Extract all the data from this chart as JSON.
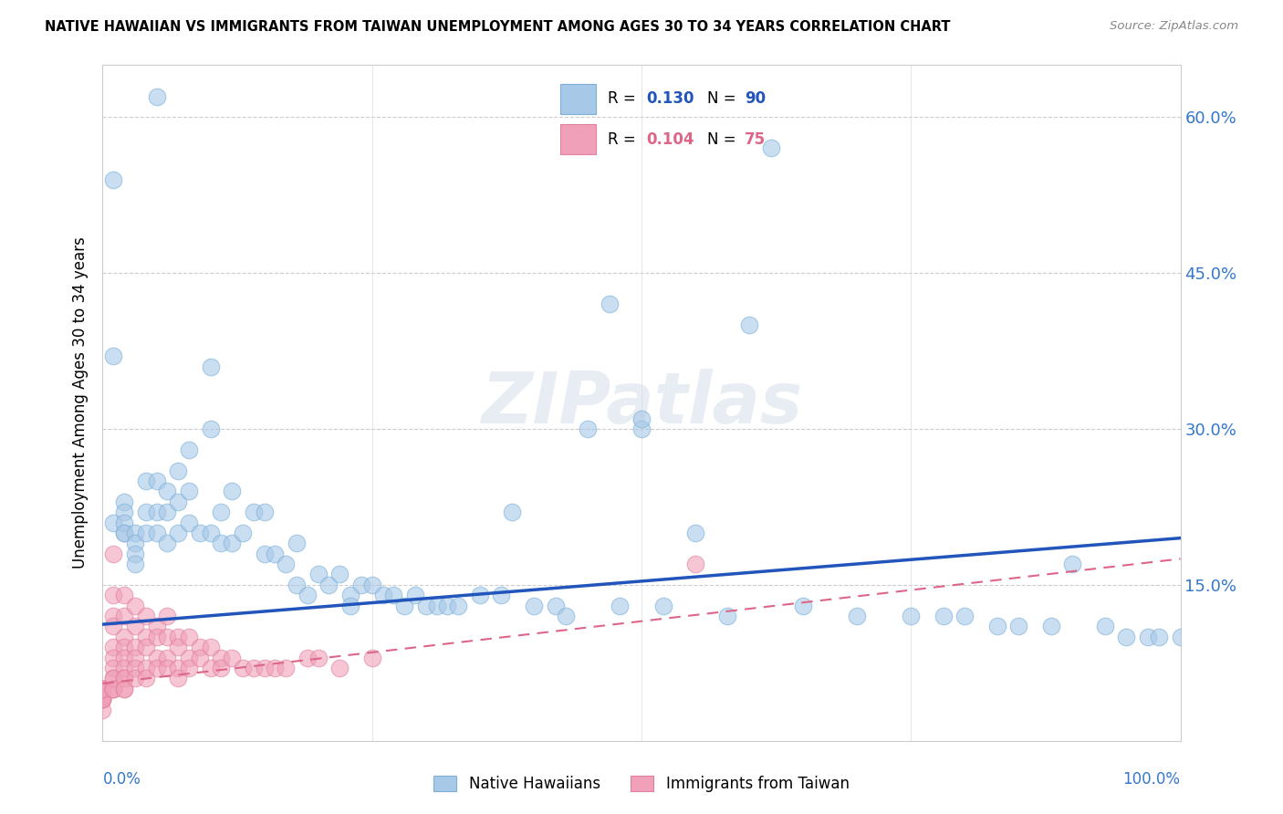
{
  "title": "NATIVE HAWAIIAN VS IMMIGRANTS FROM TAIWAN UNEMPLOYMENT AMONG AGES 30 TO 34 YEARS CORRELATION CHART",
  "source": "Source: ZipAtlas.com",
  "ylabel": "Unemployment Among Ages 30 to 34 years",
  "xlim": [
    0,
    1.0
  ],
  "ylim": [
    0,
    0.65
  ],
  "y_tick_labels": [
    "15.0%",
    "30.0%",
    "45.0%",
    "60.0%"
  ],
  "y_tick_values": [
    0.15,
    0.3,
    0.45,
    0.6
  ],
  "blue_color": "#a8c8e8",
  "pink_color": "#f0a0b8",
  "blue_edge_color": "#7ab0d8",
  "pink_edge_color": "#e080a0",
  "blue_line_color": "#2255bb",
  "pink_line_color": "#dd6688",
  "legend_R_blue": "0.130",
  "legend_N_blue": "90",
  "legend_R_pink": "0.104",
  "legend_N_pink": "75",
  "watermark": "ZIPatlas",
  "blue_scatter_x": [
    0.01,
    0.01,
    0.01,
    0.02,
    0.02,
    0.02,
    0.02,
    0.02,
    0.03,
    0.03,
    0.03,
    0.03,
    0.04,
    0.04,
    0.04,
    0.05,
    0.05,
    0.05,
    0.05,
    0.06,
    0.06,
    0.06,
    0.07,
    0.07,
    0.07,
    0.08,
    0.08,
    0.08,
    0.09,
    0.1,
    0.1,
    0.1,
    0.11,
    0.11,
    0.12,
    0.12,
    0.13,
    0.14,
    0.15,
    0.15,
    0.16,
    0.17,
    0.18,
    0.18,
    0.19,
    0.2,
    0.21,
    0.22,
    0.23,
    0.23,
    0.24,
    0.25,
    0.26,
    0.27,
    0.28,
    0.29,
    0.3,
    0.31,
    0.32,
    0.33,
    0.35,
    0.37,
    0.38,
    0.4,
    0.42,
    0.43,
    0.45,
    0.47,
    0.48,
    0.5,
    0.5,
    0.52,
    0.55,
    0.58,
    0.6,
    0.62,
    0.65,
    0.7,
    0.75,
    0.78,
    0.8,
    0.83,
    0.85,
    0.88,
    0.9,
    0.93,
    0.95,
    0.97,
    0.98,
    1.0
  ],
  "blue_scatter_y": [
    0.54,
    0.37,
    0.21,
    0.23,
    0.22,
    0.2,
    0.21,
    0.2,
    0.2,
    0.19,
    0.18,
    0.17,
    0.25,
    0.22,
    0.2,
    0.62,
    0.25,
    0.22,
    0.2,
    0.24,
    0.22,
    0.19,
    0.26,
    0.23,
    0.2,
    0.28,
    0.24,
    0.21,
    0.2,
    0.36,
    0.3,
    0.2,
    0.22,
    0.19,
    0.24,
    0.19,
    0.2,
    0.22,
    0.22,
    0.18,
    0.18,
    0.17,
    0.19,
    0.15,
    0.14,
    0.16,
    0.15,
    0.16,
    0.14,
    0.13,
    0.15,
    0.15,
    0.14,
    0.14,
    0.13,
    0.14,
    0.13,
    0.13,
    0.13,
    0.13,
    0.14,
    0.14,
    0.22,
    0.13,
    0.13,
    0.12,
    0.3,
    0.42,
    0.13,
    0.3,
    0.31,
    0.13,
    0.2,
    0.12,
    0.4,
    0.57,
    0.13,
    0.12,
    0.12,
    0.12,
    0.12,
    0.11,
    0.11,
    0.11,
    0.17,
    0.11,
    0.1,
    0.1,
    0.1,
    0.1
  ],
  "pink_scatter_x": [
    0.0,
    0.0,
    0.0,
    0.0,
    0.0,
    0.0,
    0.0,
    0.0,
    0.0,
    0.0,
    0.01,
    0.01,
    0.01,
    0.01,
    0.01,
    0.01,
    0.01,
    0.01,
    0.01,
    0.01,
    0.01,
    0.01,
    0.02,
    0.02,
    0.02,
    0.02,
    0.02,
    0.02,
    0.02,
    0.02,
    0.02,
    0.02,
    0.03,
    0.03,
    0.03,
    0.03,
    0.03,
    0.03,
    0.04,
    0.04,
    0.04,
    0.04,
    0.04,
    0.05,
    0.05,
    0.05,
    0.05,
    0.06,
    0.06,
    0.06,
    0.06,
    0.07,
    0.07,
    0.07,
    0.07,
    0.08,
    0.08,
    0.08,
    0.09,
    0.09,
    0.1,
    0.1,
    0.11,
    0.11,
    0.12,
    0.13,
    0.14,
    0.15,
    0.16,
    0.17,
    0.19,
    0.2,
    0.22,
    0.25,
    0.55
  ],
  "pink_scatter_y": [
    0.05,
    0.04,
    0.04,
    0.03,
    0.04,
    0.04,
    0.05,
    0.04,
    0.05,
    0.05,
    0.18,
    0.14,
    0.12,
    0.11,
    0.09,
    0.08,
    0.07,
    0.06,
    0.05,
    0.05,
    0.06,
    0.05,
    0.14,
    0.12,
    0.1,
    0.09,
    0.08,
    0.07,
    0.06,
    0.06,
    0.05,
    0.05,
    0.13,
    0.11,
    0.09,
    0.08,
    0.07,
    0.06,
    0.12,
    0.1,
    0.09,
    0.07,
    0.06,
    0.11,
    0.1,
    0.08,
    0.07,
    0.12,
    0.1,
    0.08,
    0.07,
    0.1,
    0.09,
    0.07,
    0.06,
    0.1,
    0.08,
    0.07,
    0.09,
    0.08,
    0.09,
    0.07,
    0.08,
    0.07,
    0.08,
    0.07,
    0.07,
    0.07,
    0.07,
    0.07,
    0.08,
    0.08,
    0.07,
    0.08,
    0.17
  ]
}
